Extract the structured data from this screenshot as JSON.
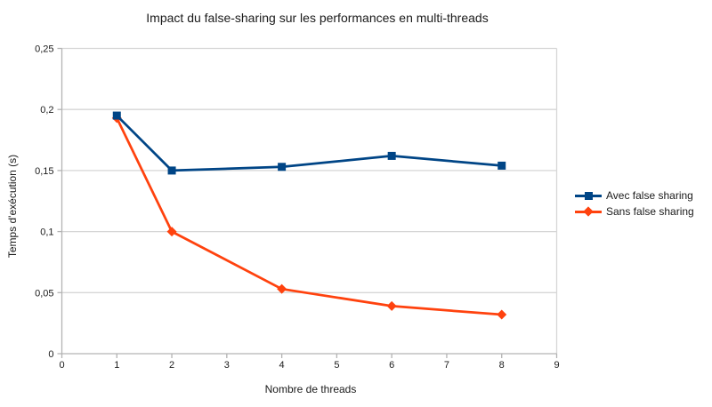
{
  "chart_data": {
    "type": "line",
    "title": "Impact du false-sharing sur les performances en multi-threads",
    "xlabel": "Nombre de threads",
    "ylabel": "Temps d'exécution (s)",
    "xlim": [
      0,
      9
    ],
    "ylim": [
      0,
      0.25
    ],
    "x_ticks": [
      0,
      1,
      2,
      3,
      4,
      5,
      6,
      7,
      8,
      9
    ],
    "x_tick_labels": [
      "0",
      "1",
      "2",
      "3",
      "4",
      "5",
      "6",
      "7",
      "8",
      "9"
    ],
    "y_ticks": [
      0,
      0.05,
      0.1,
      0.15,
      0.2,
      0.25
    ],
    "y_tick_labels": [
      "0",
      "0,05",
      "0,1",
      "0,15",
      "0,2",
      "0,25"
    ],
    "grid": "horizontal",
    "legend_position": "right",
    "series": [
      {
        "name": "Avec false sharing",
        "color": "#004586",
        "marker": "square",
        "x": [
          1,
          2,
          4,
          6,
          8
        ],
        "values": [
          0.195,
          0.15,
          0.153,
          0.162,
          0.154
        ]
      },
      {
        "name": "Sans false sharing",
        "color": "#FF420E",
        "marker": "diamond",
        "x": [
          1,
          2,
          4,
          6,
          8
        ],
        "values": [
          0.193,
          0.1,
          0.053,
          0.039,
          0.032
        ]
      }
    ],
    "colors": {
      "background": "#ffffff",
      "gridline": "#d6d6d6",
      "axis": "#b3b3b3",
      "tick_text": "#1a1a1a"
    }
  }
}
